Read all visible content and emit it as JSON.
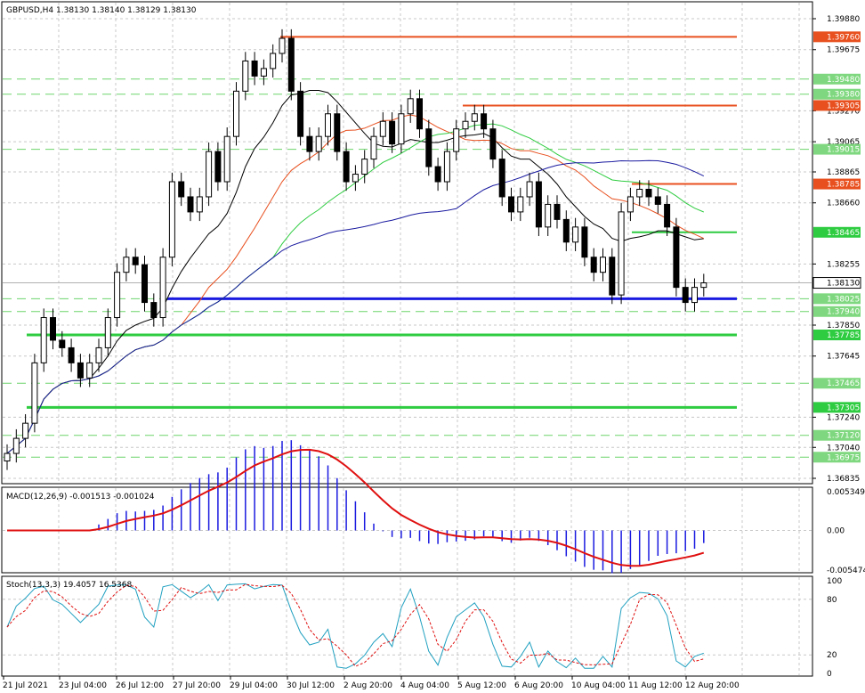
{
  "main": {
    "title": "GBPUSD,H4  1.38130 1.38140 1.38129 1.38130",
    "price_range": [
      1.36835,
      1.3988
    ],
    "price_ticks": [
      "1.39880",
      "1.39675",
      "1.39270",
      "1.39065",
      "1.38865",
      "1.38660",
      "1.38255",
      "1.37850",
      "1.37645",
      "1.37240",
      "1.37040",
      "1.36835"
    ],
    "current_price": "1.38130",
    "level_labels": [
      {
        "text": "1.39760",
        "value": 1.3976,
        "color": "#e8501f",
        "kind": "orange"
      },
      {
        "text": "1.39480",
        "value": 1.3948,
        "color": "#7fd87f",
        "kind": "green-dash"
      },
      {
        "text": "1.39380",
        "value": 1.3938,
        "color": "#7fd87f",
        "kind": "green-dash"
      },
      {
        "text": "1.39305",
        "value": 1.39305,
        "color": "#e8501f",
        "kind": "orange"
      },
      {
        "text": "1.39015",
        "value": 1.39015,
        "color": "#7fd87f",
        "kind": "green-dash"
      },
      {
        "text": "1.38785",
        "value": 1.38785,
        "color": "#e8501f",
        "kind": "orange"
      },
      {
        "text": "1.38465",
        "value": 1.38465,
        "color": "#2ecc40",
        "kind": "green"
      },
      {
        "text": "1.38025",
        "value": 1.38025,
        "color": "#7fd87f",
        "kind": "green-dash"
      },
      {
        "text": "1.37940",
        "value": 1.3794,
        "color": "#7fd87f",
        "kind": "green-dash"
      },
      {
        "text": "1.37785",
        "value": 1.37785,
        "color": "#2ecc40",
        "kind": "green"
      },
      {
        "text": "1.37465",
        "value": 1.37465,
        "color": "#7fd87f",
        "kind": "green-dash"
      },
      {
        "text": "1.37305",
        "value": 1.37305,
        "color": "#2ecc40",
        "kind": "green"
      },
      {
        "text": "1.37120",
        "value": 1.3712,
        "color": "#7fd87f",
        "kind": "green-dash"
      },
      {
        "text": "1.36975",
        "value": 1.36975,
        "color": "#7fd87f",
        "kind": "green-dash"
      }
    ]
  },
  "macd": {
    "title": "MACD(12,26,9) -0.001513 -0.001024",
    "ticks": [
      "0.005349",
      "0.00",
      "-0.005474"
    ],
    "range": [
      -0.005474,
      0.005349
    ]
  },
  "stoch": {
    "title": "Stoch(13,3,3) 19.4057 16.5368",
    "ticks": [
      "100",
      "80",
      "20",
      "0"
    ]
  },
  "time_labels": [
    "21 Jul 2021",
    "23 Jul 04:00",
    "26 Jul 12:00",
    "27 Jul 20:00",
    "29 Jul 04:00",
    "30 Jul 12:00",
    "2 Aug 20:00",
    "4 Aug 04:00",
    "5 Aug 12:00",
    "6 Aug 20:00",
    "10 Aug 04:00",
    "11 Aug 12:00",
    "12 Aug 20:00"
  ],
  "chart_data": {
    "type": "candlestick",
    "symbol": "GBPUSD",
    "timeframe": "H4",
    "ohlc_close_approx": [
      1.37,
      1.371,
      1.372,
      1.376,
      1.379,
      1.3775,
      1.377,
      1.376,
      1.375,
      1.376,
      1.377,
      1.379,
      1.382,
      1.383,
      1.3825,
      1.38,
      1.379,
      1.383,
      1.388,
      1.387,
      1.386,
      1.387,
      1.39,
      1.388,
      1.391,
      1.394,
      1.396,
      1.395,
      1.3955,
      1.3965,
      1.3975,
      1.394,
      1.391,
      1.39,
      1.391,
      1.3925,
      1.39,
      1.388,
      1.3885,
      1.3895,
      1.391,
      1.392,
      1.3905,
      1.3925,
      1.3935,
      1.3915,
      1.389,
      1.388,
      1.39,
      1.3915,
      1.392,
      1.3925,
      1.3915,
      1.3895,
      1.387,
      1.386,
      1.387,
      1.388,
      1.385,
      1.3865,
      1.3855,
      1.384,
      1.385,
      1.383,
      1.382,
      1.383,
      1.3805,
      1.386,
      1.387,
      1.3875,
      1.387,
      1.3865,
      1.385,
      1.381,
      1.38,
      1.381,
      1.3813
    ]
  }
}
